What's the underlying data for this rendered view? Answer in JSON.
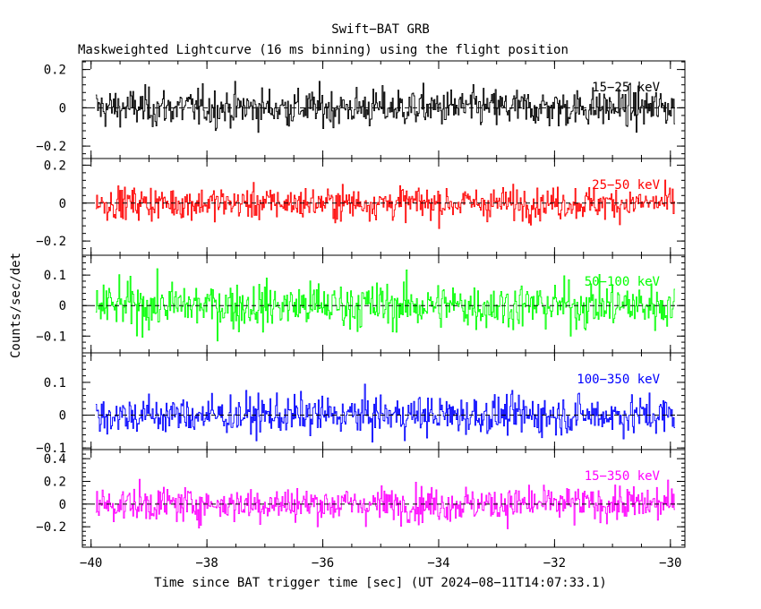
{
  "chart_data": {
    "type": "line",
    "title": "Swift−BAT GRB",
    "subtitle": "Maskweighted Lightcurve (16 ms binning) using the flight position",
    "xlabel": "Time since BAT trigger time [sec] (UT 2024−08−11T14:07:33.1)",
    "ylabel": "Counts/sec/det",
    "xlim": [
      -40.15,
      -29.75
    ],
    "x_ticks": [
      -40,
      -38,
      -36,
      -34,
      -32,
      -30
    ],
    "x_tick_labels": [
      "−40",
      "−38",
      "−36",
      "−34",
      "−32",
      "−30"
    ],
    "bin_width_sec": 0.016,
    "x_start": -39.92,
    "x_end": -29.92,
    "grid": false,
    "reference_line": "dashed y = 0 in every panel",
    "panels": [
      {
        "band_label": "15−25 keV",
        "color": "#000000",
        "ylim": [
          -0.265,
          0.245
        ],
        "y_ticks": [
          -0.2,
          0,
          0.2
        ],
        "y_tick_labels": [
          "−0.2",
          "0",
          "0.2"
        ],
        "noise_amplitude": 0.085
      },
      {
        "band_label": "25−50 keV",
        "color": "#ff0000",
        "ylim": [
          -0.275,
          0.235
        ],
        "y_ticks": [
          -0.2,
          0,
          0.2
        ],
        "y_tick_labels": [
          "−0.2",
          "0",
          "0.2"
        ],
        "noise_amplitude": 0.072
      },
      {
        "band_label": "50−100 keV",
        "color": "#00ff00",
        "ylim": [
          -0.155,
          0.165
        ],
        "y_ticks": [
          -0.1,
          0,
          0.1
        ],
        "y_tick_labels": [
          "−0.1",
          "0",
          "0.1"
        ],
        "noise_amplitude": 0.065
      },
      {
        "band_label": "100−350 keV",
        "color": "#0000ff",
        "ylim": [
          -0.105,
          0.19
        ],
        "y_ticks": [
          -0.1,
          0,
          0.1
        ],
        "y_tick_labels": [
          "−0.1",
          "0",
          "0.1"
        ],
        "noise_amplitude": 0.05
      },
      {
        "band_label": "15−350 keV",
        "color": "#ff00ff",
        "ylim": [
          -0.38,
          0.48
        ],
        "y_ticks": [
          -0.2,
          0,
          0.2,
          0.4
        ],
        "y_tick_labels": [
          "−0.2",
          "0",
          "0.2",
          "0.4"
        ],
        "noise_amplitude": 0.13
      }
    ]
  }
}
